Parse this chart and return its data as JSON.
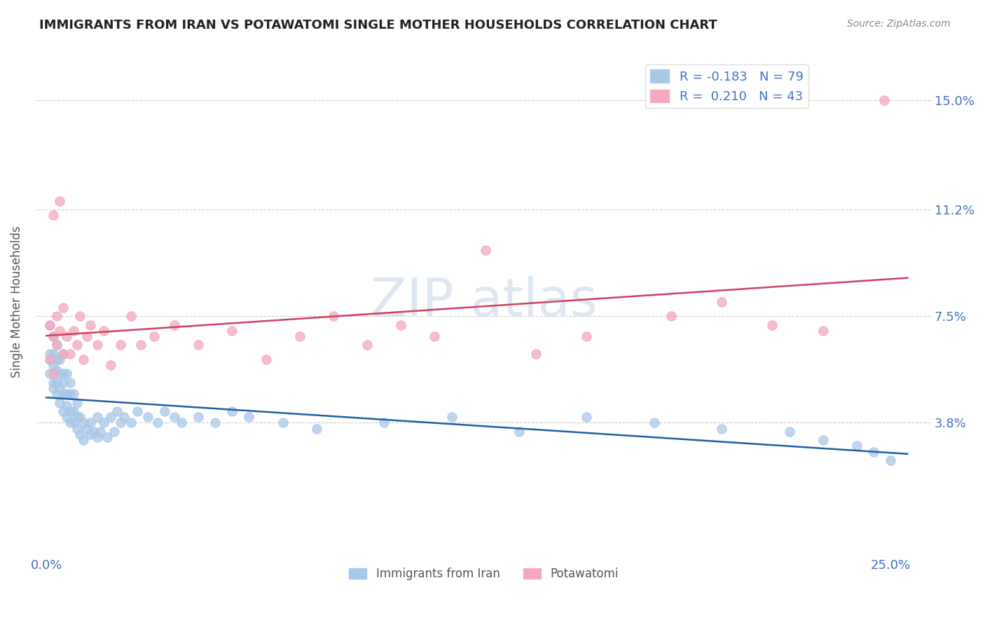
{
  "title": "IMMIGRANTS FROM IRAN VS POTAWATOMI SINGLE MOTHER HOUSEHOLDS CORRELATION CHART",
  "source": "Source: ZipAtlas.com",
  "ylabel": "Single Mother Households",
  "x_label_blue": "Immigrants from Iran",
  "x_label_pink": "Potawatomi",
  "xlim": [
    -0.003,
    0.262
  ],
  "ylim": [
    -0.008,
    0.168
  ],
  "blue_R": -0.183,
  "blue_N": 79,
  "pink_R": 0.21,
  "pink_N": 43,
  "blue_color": "#A8C8E8",
  "pink_color": "#F4A8BC",
  "blue_line_color": "#2060A0",
  "pink_line_color": "#D04060",
  "grid_color": "#CCCCCC",
  "background_color": "#FFFFFF",
  "title_color": "#222222",
  "tick_label_color": "#4472C4",
  "blue_x": [
    0.001,
    0.001,
    0.001,
    0.001,
    0.002,
    0.002,
    0.002,
    0.002,
    0.002,
    0.003,
    0.003,
    0.003,
    0.003,
    0.003,
    0.004,
    0.004,
    0.004,
    0.004,
    0.005,
    0.005,
    0.005,
    0.005,
    0.005,
    0.006,
    0.006,
    0.006,
    0.006,
    0.007,
    0.007,
    0.007,
    0.007,
    0.008,
    0.008,
    0.008,
    0.009,
    0.009,
    0.009,
    0.01,
    0.01,
    0.011,
    0.011,
    0.012,
    0.013,
    0.013,
    0.014,
    0.015,
    0.015,
    0.016,
    0.017,
    0.018,
    0.019,
    0.02,
    0.021,
    0.022,
    0.023,
    0.025,
    0.027,
    0.03,
    0.033,
    0.035,
    0.038,
    0.04,
    0.045,
    0.05,
    0.055,
    0.06,
    0.07,
    0.08,
    0.1,
    0.12,
    0.14,
    0.16,
    0.18,
    0.2,
    0.22,
    0.23,
    0.24,
    0.245,
    0.25
  ],
  "blue_y": [
    0.055,
    0.06,
    0.062,
    0.072,
    0.05,
    0.052,
    0.058,
    0.062,
    0.068,
    0.048,
    0.052,
    0.056,
    0.06,
    0.065,
    0.045,
    0.05,
    0.055,
    0.06,
    0.042,
    0.048,
    0.052,
    0.055,
    0.062,
    0.04,
    0.044,
    0.048,
    0.055,
    0.038,
    0.042,
    0.048,
    0.052,
    0.038,
    0.042,
    0.048,
    0.036,
    0.04,
    0.045,
    0.034,
    0.04,
    0.032,
    0.038,
    0.036,
    0.034,
    0.038,
    0.035,
    0.033,
    0.04,
    0.035,
    0.038,
    0.033,
    0.04,
    0.035,
    0.042,
    0.038,
    0.04,
    0.038,
    0.042,
    0.04,
    0.038,
    0.042,
    0.04,
    0.038,
    0.04,
    0.038,
    0.042,
    0.04,
    0.038,
    0.036,
    0.038,
    0.04,
    0.035,
    0.04,
    0.038,
    0.036,
    0.035,
    0.032,
    0.03,
    0.028,
    0.025
  ],
  "pink_x": [
    0.001,
    0.001,
    0.002,
    0.002,
    0.002,
    0.003,
    0.003,
    0.004,
    0.004,
    0.005,
    0.005,
    0.006,
    0.007,
    0.008,
    0.009,
    0.01,
    0.011,
    0.012,
    0.013,
    0.015,
    0.017,
    0.019,
    0.022,
    0.025,
    0.028,
    0.032,
    0.038,
    0.045,
    0.055,
    0.065,
    0.075,
    0.085,
    0.095,
    0.105,
    0.115,
    0.13,
    0.145,
    0.16,
    0.185,
    0.2,
    0.215,
    0.23,
    0.248
  ],
  "pink_y": [
    0.06,
    0.072,
    0.055,
    0.11,
    0.068,
    0.065,
    0.075,
    0.07,
    0.115,
    0.062,
    0.078,
    0.068,
    0.062,
    0.07,
    0.065,
    0.075,
    0.06,
    0.068,
    0.072,
    0.065,
    0.07,
    0.058,
    0.065,
    0.075,
    0.065,
    0.068,
    0.072,
    0.065,
    0.07,
    0.06,
    0.068,
    0.075,
    0.065,
    0.072,
    0.068,
    0.098,
    0.062,
    0.068,
    0.075,
    0.08,
    0.072,
    0.07,
    0.15
  ]
}
